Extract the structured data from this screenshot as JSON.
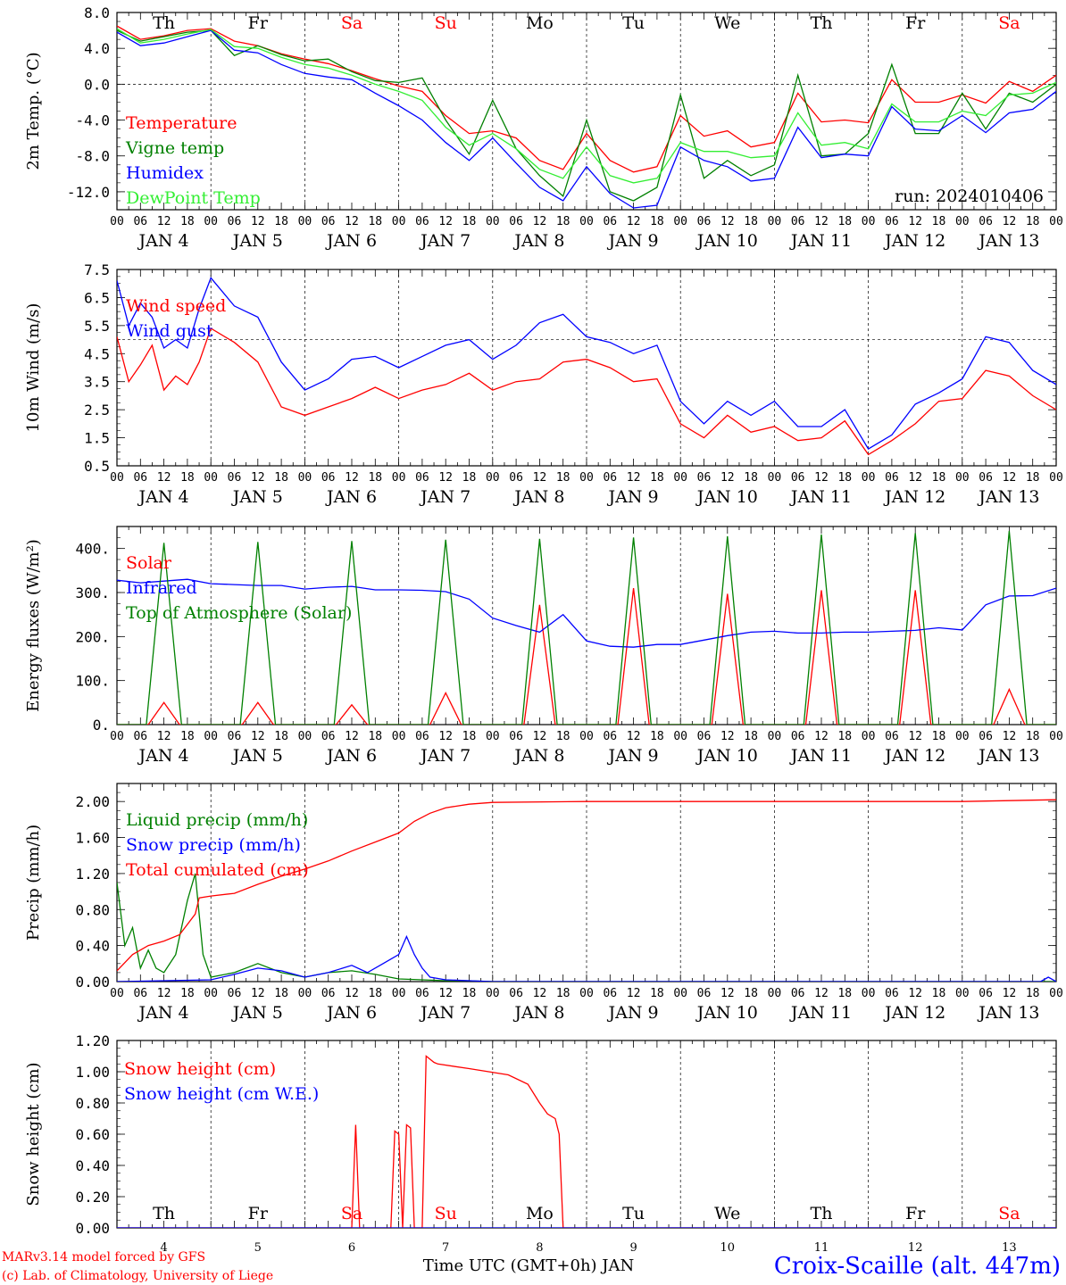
{
  "common": {
    "day_names": [
      "Th",
      "Fr",
      "Sa",
      "Su",
      "Mo",
      "Tu",
      "We",
      "Th",
      "Fr",
      "Sa"
    ],
    "weekend_flags": [
      false,
      false,
      true,
      true,
      false,
      false,
      false,
      false,
      false,
      true
    ],
    "date_labels": [
      "JAN  4",
      "JAN  5",
      "JAN  6",
      "JAN  7",
      "JAN  8",
      "JAN  9",
      "JAN 10",
      "JAN 11",
      "JAN 12",
      "JAN 13"
    ],
    "hour_ticks": [
      "00",
      "06",
      "12",
      "18"
    ],
    "hour_end": "00",
    "bottom_dates": [
      "4",
      "5",
      "6",
      "7",
      "8",
      "9",
      "10",
      "11",
      "12",
      "13"
    ],
    "time_axis_label": "Time UTC (GMT+0h) JAN"
  },
  "footer": {
    "credit_line1": "MARv3.14 model forced by GFS",
    "credit_line2": "(c) Lab. of Climatology, University of Liege",
    "station": "Croix-Scaille (alt. 447m)"
  },
  "colors": {
    "red": "#ff0000",
    "green": "#008000",
    "blue": "#0000ff",
    "lightgreen": "#33ee33",
    "weekend": "#ff0000",
    "grid": "#000000"
  },
  "chart_data": [
    {
      "type": "line",
      "ylabel": "2m Temp. (°C)",
      "ylim": [
        -14,
        8
      ],
      "yticks": [
        "8.0",
        "4.0",
        "0.0",
        "-4.0",
        "-8.0",
        "-12.0"
      ],
      "ytick_values": [
        8,
        4,
        0,
        -4,
        -8,
        -12
      ],
      "ref_line": 0,
      "annotation": "run: 2024010406",
      "x_unit": "hours since JAN 4 00 UTC",
      "series": [
        {
          "name": "Temperature",
          "color": "red",
          "x": [
            0,
            6,
            12,
            18,
            24,
            30,
            36,
            42,
            48,
            54,
            60,
            66,
            72,
            78,
            84,
            90,
            96,
            102,
            108,
            114,
            120,
            126,
            132,
            138,
            144,
            150,
            156,
            162,
            168,
            174,
            180,
            186,
            192,
            198,
            204,
            210,
            216,
            222,
            228,
            234,
            240
          ],
          "y": [
            6.5,
            5.0,
            5.4,
            6.0,
            6.2,
            4.8,
            4.3,
            3.4,
            2.8,
            2.3,
            1.5,
            0.6,
            -0.2,
            -0.8,
            -3.5,
            -5.5,
            -5.2,
            -6.0,
            -8.5,
            -9.5,
            -5.5,
            -8.5,
            -9.8,
            -9.2,
            -3.5,
            -5.8,
            -5.2,
            -7.0,
            -6.5,
            -1.0,
            -4.2,
            -4.0,
            -4.3,
            0.5,
            -2.0,
            -2.0,
            -1.2,
            -2.1,
            0.3,
            -0.8,
            1.0
          ]
        },
        {
          "name": "Vigne temp",
          "color": "green",
          "x": [
            0,
            6,
            12,
            18,
            24,
            30,
            36,
            42,
            48,
            54,
            60,
            66,
            72,
            78,
            84,
            90,
            96,
            102,
            108,
            114,
            120,
            126,
            132,
            138,
            144,
            150,
            156,
            162,
            168,
            174,
            180,
            186,
            192,
            198,
            204,
            210,
            216,
            222,
            228,
            234,
            240
          ],
          "y": [
            6.0,
            4.8,
            5.3,
            5.8,
            6.0,
            3.2,
            4.3,
            3.3,
            2.6,
            2.8,
            1.4,
            0.4,
            0.2,
            0.7,
            -4.0,
            -7.8,
            -1.8,
            -7.2,
            -10.2,
            -12.5,
            -4.0,
            -12.0,
            -13.0,
            -11.5,
            -1.2,
            -10.5,
            -8.5,
            -10.2,
            -9.0,
            1.0,
            -8.0,
            -7.8,
            -5.5,
            2.2,
            -5.5,
            -5.5,
            -1.0,
            -5.0,
            -1.0,
            -2.0,
            0.0
          ]
        },
        {
          "name": "Humidex",
          "color": "blue",
          "x": [
            0,
            6,
            12,
            18,
            24,
            30,
            36,
            42,
            48,
            54,
            60,
            66,
            72,
            78,
            84,
            90,
            96,
            102,
            108,
            114,
            120,
            126,
            132,
            138,
            144,
            150,
            156,
            162,
            168,
            174,
            180,
            186,
            192,
            198,
            204,
            210,
            216,
            222,
            228,
            234,
            240
          ],
          "y": [
            5.8,
            4.3,
            4.6,
            5.3,
            6.0,
            3.8,
            3.5,
            2.2,
            1.2,
            0.8,
            0.5,
            -1.0,
            -2.4,
            -4.0,
            -6.5,
            -8.5,
            -6.0,
            -8.8,
            -11.5,
            -13.0,
            -9.2,
            -12.2,
            -13.8,
            -13.5,
            -7.0,
            -8.5,
            -9.2,
            -10.8,
            -10.5,
            -4.8,
            -8.2,
            -7.8,
            -8.0,
            -2.5,
            -5.0,
            -5.2,
            -3.5,
            -5.4,
            -3.2,
            -2.8,
            -0.8
          ]
        },
        {
          "name": "DewPoint Temp",
          "color": "lightgreen",
          "x": [
            0,
            6,
            12,
            18,
            24,
            30,
            36,
            42,
            48,
            54,
            60,
            66,
            72,
            78,
            84,
            90,
            96,
            102,
            108,
            114,
            120,
            126,
            132,
            138,
            144,
            150,
            156,
            162,
            168,
            174,
            180,
            186,
            192,
            198,
            204,
            210,
            216,
            222,
            228,
            234,
            240
          ],
          "y": [
            6.2,
            4.6,
            5.0,
            5.6,
            6.1,
            4.2,
            4.0,
            3.0,
            2.2,
            1.8,
            1.0,
            0.0,
            -0.8,
            -1.8,
            -4.8,
            -6.8,
            -5.5,
            -7.2,
            -9.5,
            -10.5,
            -7.0,
            -10.2,
            -11.0,
            -10.5,
            -6.5,
            -7.5,
            -7.5,
            -8.2,
            -8.0,
            -3.2,
            -6.8,
            -6.5,
            -7.2,
            -2.2,
            -4.2,
            -4.2,
            -3.0,
            -3.5,
            -1.2,
            -1.0,
            0.2
          ]
        }
      ]
    },
    {
      "type": "line",
      "ylabel": "10m Wind (m/s)",
      "ylim": [
        0.5,
        7.5
      ],
      "yticks": [
        "7.5",
        "6.5",
        "5.5",
        "4.5",
        "3.5",
        "2.5",
        "1.5",
        "0.5"
      ],
      "ytick_values": [
        7.5,
        6.5,
        5.5,
        4.5,
        3.5,
        2.5,
        1.5,
        0.5
      ],
      "ref_line": 5.0,
      "x_unit": "hours since JAN 4 00 UTC",
      "series": [
        {
          "name": "Wind speed",
          "color": "red",
          "x": [
            0,
            3,
            6,
            9,
            12,
            15,
            18,
            21,
            24,
            30,
            36,
            42,
            48,
            54,
            60,
            66,
            72,
            78,
            84,
            90,
            96,
            102,
            108,
            114,
            120,
            126,
            132,
            138,
            144,
            150,
            156,
            162,
            168,
            174,
            180,
            186,
            192,
            198,
            204,
            210,
            216,
            222,
            228,
            234,
            240
          ],
          "y": [
            5.1,
            3.5,
            4.1,
            4.8,
            3.2,
            3.7,
            3.4,
            4.2,
            5.4,
            4.9,
            4.2,
            2.6,
            2.3,
            2.6,
            2.9,
            3.3,
            2.9,
            3.2,
            3.4,
            3.8,
            3.2,
            3.5,
            3.6,
            4.2,
            4.3,
            4.0,
            3.5,
            3.6,
            2.0,
            1.5,
            2.3,
            1.7,
            1.9,
            1.4,
            1.5,
            2.1,
            0.9,
            1.4,
            2.0,
            2.8,
            2.9,
            3.9,
            3.7,
            3.0,
            2.5
          ]
        },
        {
          "name": "Wind gust",
          "color": "blue",
          "x": [
            0,
            3,
            6,
            9,
            12,
            15,
            18,
            21,
            24,
            30,
            36,
            42,
            48,
            54,
            60,
            66,
            72,
            78,
            84,
            90,
            96,
            102,
            108,
            114,
            120,
            126,
            132,
            138,
            144,
            150,
            156,
            162,
            168,
            174,
            180,
            186,
            192,
            198,
            204,
            210,
            216,
            222,
            228,
            234,
            240
          ],
          "y": [
            7.1,
            5.5,
            6.3,
            5.8,
            4.7,
            5.0,
            4.7,
            6.1,
            7.2,
            6.2,
            5.8,
            4.2,
            3.2,
            3.6,
            4.3,
            4.4,
            4.0,
            4.4,
            4.8,
            5.0,
            4.3,
            4.8,
            5.6,
            5.9,
            5.1,
            4.9,
            4.5,
            4.8,
            2.8,
            2.0,
            2.8,
            2.3,
            2.8,
            1.9,
            1.9,
            2.5,
            1.1,
            1.6,
            2.7,
            3.1,
            3.6,
            5.1,
            4.9,
            3.9,
            3.4
          ]
        }
      ]
    },
    {
      "type": "line",
      "ylabel": "Energy fluxes (W/m²)",
      "ylim": [
        0,
        450
      ],
      "yticks": [
        "400.",
        "300.",
        "200.",
        "100.",
        "0."
      ],
      "ytick_values": [
        400,
        300,
        200,
        100,
        0
      ],
      "x_unit": "hours since JAN 4 00 UTC",
      "day_peaks": {
        "solar": [
          50,
          50,
          45,
          72,
          272,
          310,
          297,
          305,
          305,
          80
        ],
        "toa": [
          413,
          415,
          417,
          420,
          422,
          425,
          428,
          432,
          435,
          440
        ]
      },
      "series": [
        {
          "name": "Solar",
          "color": "red"
        },
        {
          "name": "Infrared",
          "color": "blue",
          "x": [
            0,
            6,
            12,
            18,
            24,
            30,
            36,
            42,
            48,
            54,
            60,
            66,
            72,
            78,
            84,
            90,
            96,
            102,
            108,
            114,
            120,
            126,
            132,
            138,
            144,
            150,
            156,
            162,
            168,
            174,
            180,
            186,
            192,
            198,
            204,
            210,
            216,
            222,
            228,
            234,
            240
          ],
          "y": [
            328,
            322,
            326,
            330,
            320,
            318,
            316,
            316,
            308,
            312,
            314,
            306,
            306,
            305,
            302,
            285,
            242,
            225,
            210,
            250,
            190,
            178,
            176,
            182,
            182,
            192,
            202,
            210,
            212,
            208,
            208,
            210,
            210,
            212,
            214,
            220,
            215,
            272,
            292,
            293,
            310
          ]
        },
        {
          "name": "Top of Atmosphere (Solar)",
          "color": "green"
        }
      ]
    },
    {
      "type": "line",
      "ylabel": "Precip (mm/h)",
      "ylim": [
        0,
        2.2
      ],
      "yticks": [
        "2.00",
        "1.60",
        "1.20",
        "0.80",
        "0.40",
        "0.00"
      ],
      "ytick_values": [
        2.0,
        1.6,
        1.2,
        0.8,
        0.4,
        0.0
      ],
      "x_unit": "hours since JAN 4 00 UTC",
      "series": [
        {
          "name": "Liquid precip (mm/h)",
          "color": "green",
          "x": [
            0,
            2,
            4,
            6,
            8,
            10,
            12,
            15,
            18,
            20,
            22,
            24,
            30,
            36,
            42,
            48,
            54,
            60,
            66,
            72,
            78,
            84,
            90,
            96,
            120,
            144,
            168,
            192,
            216,
            237,
            240
          ],
          "y": [
            1.1,
            0.4,
            0.6,
            0.15,
            0.35,
            0.15,
            0.1,
            0.3,
            0.9,
            1.2,
            0.3,
            0.05,
            0.1,
            0.2,
            0.1,
            0.05,
            0.1,
            0.12,
            0.08,
            0.03,
            0.02,
            0.01,
            0.01,
            0.0,
            0.0,
            0.0,
            0.0,
            0.0,
            0.0,
            0.0,
            0.0
          ]
        },
        {
          "name": "Snow precip (mm/h)",
          "color": "blue",
          "x": [
            0,
            12,
            24,
            30,
            36,
            42,
            48,
            54,
            60,
            64,
            68,
            72,
            74,
            76,
            78,
            80,
            84,
            90,
            96,
            120,
            144,
            168,
            192,
            216,
            236,
            238,
            240
          ],
          "y": [
            0.0,
            0.01,
            0.02,
            0.08,
            0.15,
            0.12,
            0.05,
            0.1,
            0.18,
            0.1,
            0.2,
            0.3,
            0.5,
            0.3,
            0.15,
            0.05,
            0.02,
            0.01,
            0.0,
            0.0,
            0.0,
            0.0,
            0.0,
            0.0,
            0.0,
            0.05,
            0.0
          ]
        },
        {
          "name": "Total cumulated (cm)",
          "color": "red",
          "x": [
            0,
            4,
            8,
            12,
            16,
            20,
            21,
            24,
            30,
            36,
            42,
            48,
            54,
            60,
            66,
            72,
            76,
            80,
            84,
            90,
            96,
            120,
            144,
            168,
            192,
            216,
            240
          ],
          "y": [
            0.12,
            0.3,
            0.4,
            0.45,
            0.52,
            0.75,
            0.93,
            0.95,
            0.98,
            1.08,
            1.17,
            1.25,
            1.34,
            1.45,
            1.55,
            1.65,
            1.78,
            1.87,
            1.93,
            1.97,
            1.99,
            2.0,
            2.0,
            2.0,
            2.0,
            2.0,
            2.02
          ]
        }
      ]
    },
    {
      "type": "line",
      "ylabel": "Snow height (cm)",
      "ylim": [
        0,
        1.2
      ],
      "yticks": [
        "1.20",
        "1.00",
        "0.80",
        "0.60",
        "0.40",
        "0.20",
        "0.00"
      ],
      "ytick_values": [
        1.2,
        1.0,
        0.8,
        0.6,
        0.4,
        0.2,
        0.0
      ],
      "x_unit": "hours since JAN 4 00 UTC",
      "series": [
        {
          "name": "Snow height (cm)",
          "color": "red",
          "x": [
            0,
            60,
            61,
            62,
            70,
            71,
            72,
            73,
            74,
            75,
            76,
            77,
            78,
            79,
            80,
            81,
            82,
            90,
            100,
            105,
            108,
            110,
            112,
            113,
            114,
            240
          ],
          "y": [
            0,
            0,
            0.66,
            0,
            0,
            0.62,
            0.6,
            0,
            0.66,
            0.64,
            0,
            0,
            0,
            1.1,
            1.08,
            1.06,
            1.05,
            1.02,
            0.98,
            0.92,
            0.8,
            0.73,
            0.7,
            0.6,
            0,
            0
          ]
        },
        {
          "name": "Snow height (cm W.E.)",
          "color": "blue",
          "x": [
            0,
            240
          ],
          "y": [
            0,
            0
          ]
        }
      ]
    }
  ]
}
